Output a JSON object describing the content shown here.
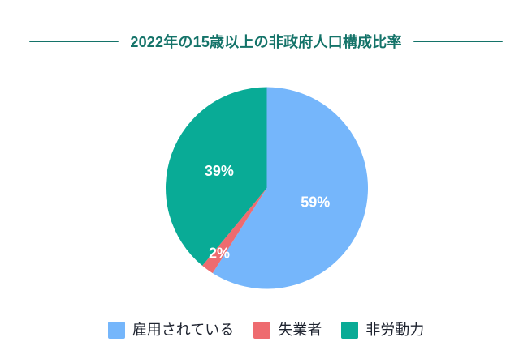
{
  "page": {
    "background_color": "#ffffff",
    "accent_color": "#147369"
  },
  "header": {
    "title": "2022年の15歳以上の非政府人口構成比率"
  },
  "chart_data": {
    "type": "pie",
    "title": "2022年の15歳以上の非政府人口構成比率",
    "categories": [
      "雇用されている",
      "失業者",
      "非労動力"
    ],
    "values": [
      59,
      2,
      39
    ],
    "slice_labels": [
      "59%",
      "2%",
      "39%"
    ],
    "colors": [
      "#75b6fb",
      "#ee6b6f",
      "#09ab96"
    ],
    "label_color": "#ffffff",
    "start_angle_deg": 0,
    "direction": "clockwise",
    "legend_position": "bottom",
    "legend_text_color": "#1f2430"
  }
}
